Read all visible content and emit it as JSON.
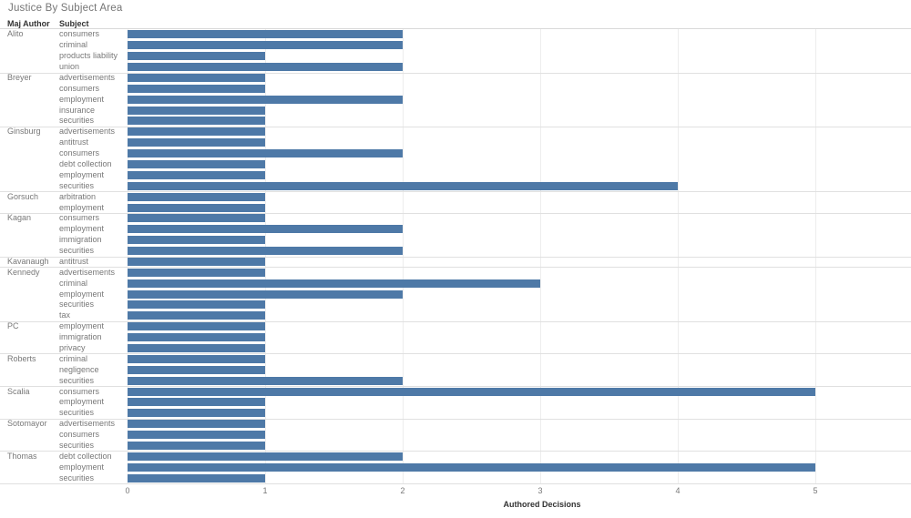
{
  "title": "Justice By Subject Area",
  "columns": {
    "maj_author": "Maj Author",
    "subject": "Subject"
  },
  "axis": {
    "label": "Authored Decisions",
    "ticks": [
      "0",
      "1",
      "2",
      "3",
      "4",
      "5"
    ],
    "min": 0,
    "max": 5
  },
  "colors": {
    "bar": "#4e79a7",
    "gridline": "#ededed",
    "separator": "#e0e0e0",
    "label_text": "#787878",
    "header_text": "#333333",
    "title_text": "#757575"
  },
  "chart_data": {
    "type": "bar",
    "orientation": "horizontal",
    "title": "Justice By Subject Area",
    "xlabel": "Authored Decisions",
    "xticks": [
      0,
      1,
      2,
      3,
      4,
      5
    ],
    "xlim": [
      0,
      5.7
    ],
    "grid": true,
    "groups": [
      {
        "author": "Alito",
        "rows": [
          {
            "subject": "consumers",
            "value": 2
          },
          {
            "subject": "criminal",
            "value": 2
          },
          {
            "subject": "products liability",
            "value": 1
          },
          {
            "subject": "union",
            "value": 2
          }
        ]
      },
      {
        "author": "Breyer",
        "rows": [
          {
            "subject": "advertisements",
            "value": 1
          },
          {
            "subject": "consumers",
            "value": 1
          },
          {
            "subject": "employment",
            "value": 2
          },
          {
            "subject": "insurance",
            "value": 1
          },
          {
            "subject": "securities",
            "value": 1
          }
        ]
      },
      {
        "author": "Ginsburg",
        "rows": [
          {
            "subject": "advertisements",
            "value": 1
          },
          {
            "subject": "antitrust",
            "value": 1
          },
          {
            "subject": "consumers",
            "value": 2
          },
          {
            "subject": "debt collection",
            "value": 1
          },
          {
            "subject": "employment",
            "value": 1
          },
          {
            "subject": "securities",
            "value": 4
          }
        ]
      },
      {
        "author": "Gorsuch",
        "rows": [
          {
            "subject": "arbitration",
            "value": 1
          },
          {
            "subject": "employment",
            "value": 1
          }
        ]
      },
      {
        "author": "Kagan",
        "rows": [
          {
            "subject": "consumers",
            "value": 1
          },
          {
            "subject": "employment",
            "value": 2
          },
          {
            "subject": "immigration",
            "value": 1
          },
          {
            "subject": "securities",
            "value": 2
          }
        ]
      },
      {
        "author": "Kavanaugh",
        "rows": [
          {
            "subject": "antitrust",
            "value": 1
          }
        ]
      },
      {
        "author": "Kennedy",
        "rows": [
          {
            "subject": "advertisements",
            "value": 1
          },
          {
            "subject": "criminal",
            "value": 3
          },
          {
            "subject": "employment",
            "value": 2
          },
          {
            "subject": "securities",
            "value": 1
          },
          {
            "subject": "tax",
            "value": 1
          }
        ]
      },
      {
        "author": "PC",
        "rows": [
          {
            "subject": "employment",
            "value": 1
          },
          {
            "subject": "immigration",
            "value": 1
          },
          {
            "subject": "privacy",
            "value": 1
          }
        ]
      },
      {
        "author": "Roberts",
        "rows": [
          {
            "subject": "criminal",
            "value": 1
          },
          {
            "subject": "negligence",
            "value": 1
          },
          {
            "subject": "securities",
            "value": 2
          }
        ]
      },
      {
        "author": "Scalia",
        "rows": [
          {
            "subject": "consumers",
            "value": 5
          },
          {
            "subject": "employment",
            "value": 1
          },
          {
            "subject": "securities",
            "value": 1
          }
        ]
      },
      {
        "author": "Sotomayor",
        "rows": [
          {
            "subject": "advertisements",
            "value": 1
          },
          {
            "subject": "consumers",
            "value": 1
          },
          {
            "subject": "securities",
            "value": 1
          }
        ]
      },
      {
        "author": "Thomas",
        "rows": [
          {
            "subject": "debt collection",
            "value": 2
          },
          {
            "subject": "employment",
            "value": 5
          },
          {
            "subject": "securities",
            "value": 1
          }
        ]
      }
    ]
  }
}
